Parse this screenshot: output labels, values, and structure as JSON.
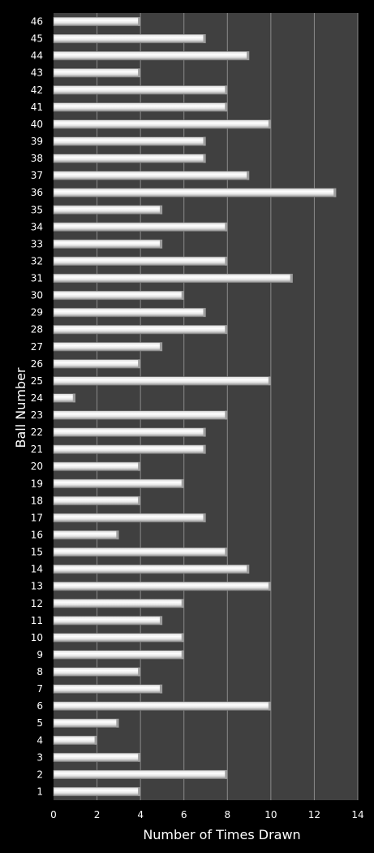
{
  "chart_data": {
    "type": "bar",
    "orientation": "horizontal",
    "categories": [
      "1",
      "2",
      "3",
      "4",
      "5",
      "6",
      "7",
      "8",
      "9",
      "10",
      "11",
      "12",
      "13",
      "14",
      "15",
      "16",
      "17",
      "18",
      "19",
      "20",
      "21",
      "22",
      "23",
      "24",
      "25",
      "26",
      "27",
      "28",
      "29",
      "30",
      "31",
      "32",
      "33",
      "34",
      "35",
      "36",
      "37",
      "38",
      "39",
      "40",
      "41",
      "42",
      "43",
      "44",
      "45",
      "46"
    ],
    "values": [
      4,
      8,
      4,
      2,
      3,
      10,
      5,
      4,
      6,
      6,
      5,
      6,
      10,
      9,
      8,
      3,
      7,
      4,
      6,
      4,
      7,
      7,
      8,
      1,
      10,
      4,
      5,
      8,
      7,
      6,
      11,
      8,
      5,
      8,
      5,
      13,
      9,
      7,
      7,
      10,
      8,
      8,
      4,
      9,
      7,
      4
    ],
    "xlabel": "Number of Times Drawn",
    "ylabel": "Ball Number",
    "xlim": [
      0,
      14
    ],
    "xticks": [
      "0",
      "2",
      "4",
      "6",
      "8",
      "10",
      "12",
      "14"
    ],
    "grid": "vertical",
    "legend": "none",
    "colors": {
      "page_background": "#000000",
      "plot_background": "#404040",
      "gridline": "#8a8a8a",
      "bar_light": "#ffffff",
      "bar_dark": "#9a9a9a",
      "text": "#ffffff"
    }
  }
}
